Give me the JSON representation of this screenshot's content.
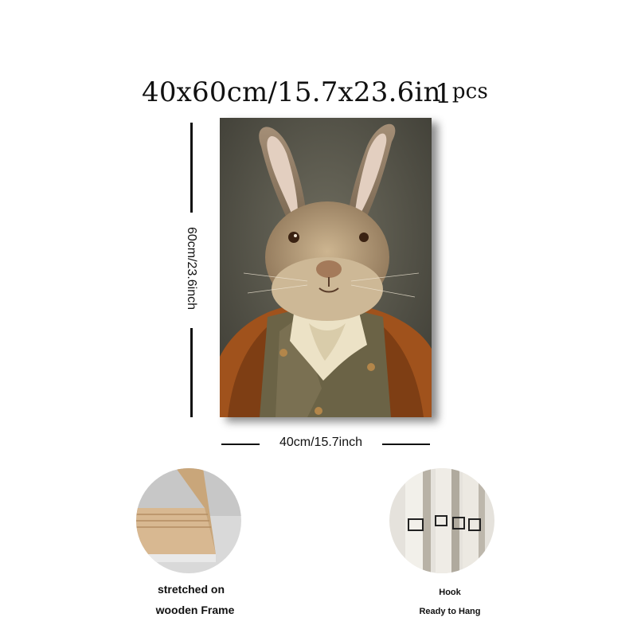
{
  "title": {
    "size_text": "40x60cm/15.7x23.6in",
    "pcs_number": "1",
    "pcs_unit": "pcs"
  },
  "dimensions": {
    "height_label": "60cm/23.6inch",
    "width_label": "40cm/15.7inch"
  },
  "features": [
    {
      "line1": "stretched on",
      "line2": "wooden Frame"
    },
    {
      "line1": "Hook",
      "line2": "Ready to Hang"
    }
  ],
  "artwork": {
    "subject": "rabbit portrait in vintage jacket and waistcoat",
    "background_color": "#5a5a4e",
    "jacket_color": "#a0521c",
    "vest_color": "#6b6346"
  }
}
